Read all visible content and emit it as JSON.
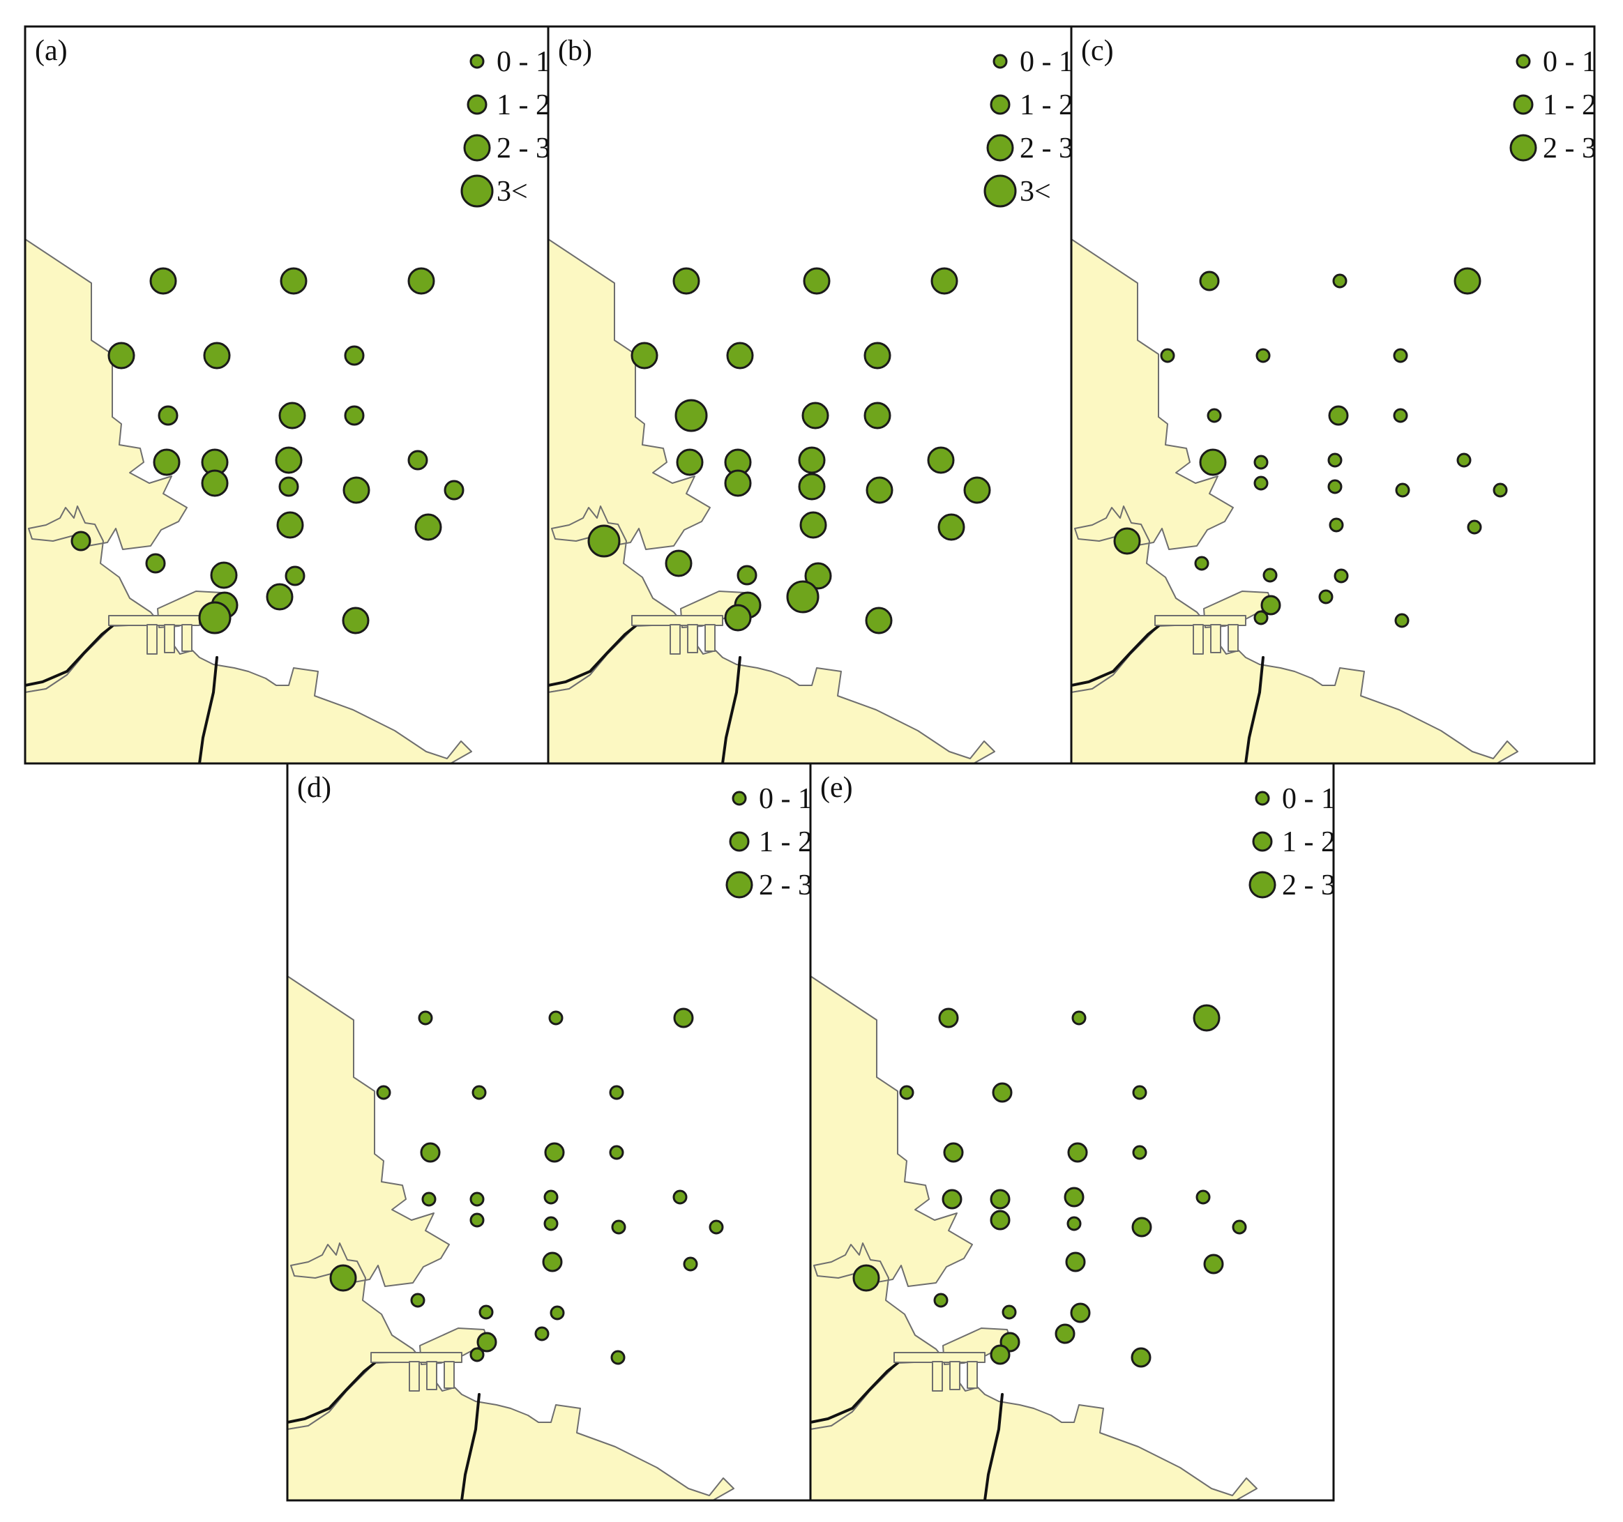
{
  "colors": {
    "land": "#fcf8c2",
    "marker": "#6fa51c",
    "marker_stroke": "#1a1a1a",
    "frame": "#111111"
  },
  "legends": {
    "four_class": [
      "0 - 1",
      "1 - 2",
      "2 - 3",
      "3<"
    ],
    "three_class": [
      "0 - 1",
      "1 - 2",
      "2 - 3"
    ]
  },
  "panels": [
    {
      "label": "(a)",
      "legend": "four_class",
      "stations": [
        3,
        3,
        3,
        3,
        3,
        2,
        2,
        3,
        2,
        3,
        3,
        3,
        2,
        3,
        2,
        3,
        2,
        3,
        3,
        2,
        2,
        3,
        2,
        3,
        3,
        4,
        3
      ]
    },
    {
      "label": "(b)",
      "legend": "four_class",
      "stations": [
        3,
        3,
        3,
        3,
        3,
        3,
        4,
        3,
        3,
        3,
        3,
        3,
        3,
        3,
        3,
        3,
        3,
        3,
        3,
        4,
        3,
        2,
        3,
        3,
        4,
        3,
        3
      ]
    },
    {
      "label": "(c)",
      "legend": "three_class",
      "stations": [
        2,
        1,
        3,
        1,
        1,
        1,
        1,
        2,
        1,
        3,
        1,
        1,
        1,
        1,
        1,
        1,
        1,
        1,
        1,
        3,
        1,
        1,
        1,
        2,
        1,
        1,
        1
      ]
    },
    {
      "label": "(d)",
      "legend": "three_class",
      "stations": [
        1,
        1,
        2,
        1,
        1,
        1,
        2,
        2,
        1,
        1,
        1,
        1,
        1,
        1,
        1,
        1,
        1,
        2,
        1,
        3,
        1,
        1,
        1,
        2,
        1,
        1,
        1
      ]
    },
    {
      "label": "(e)",
      "legend": "three_class",
      "stations": [
        2,
        1,
        3,
        1,
        2,
        1,
        2,
        2,
        1,
        2,
        2,
        2,
        1,
        2,
        1,
        2,
        1,
        2,
        2,
        3,
        1,
        1,
        2,
        2,
        2,
        2,
        2
      ]
    }
  ]
}
